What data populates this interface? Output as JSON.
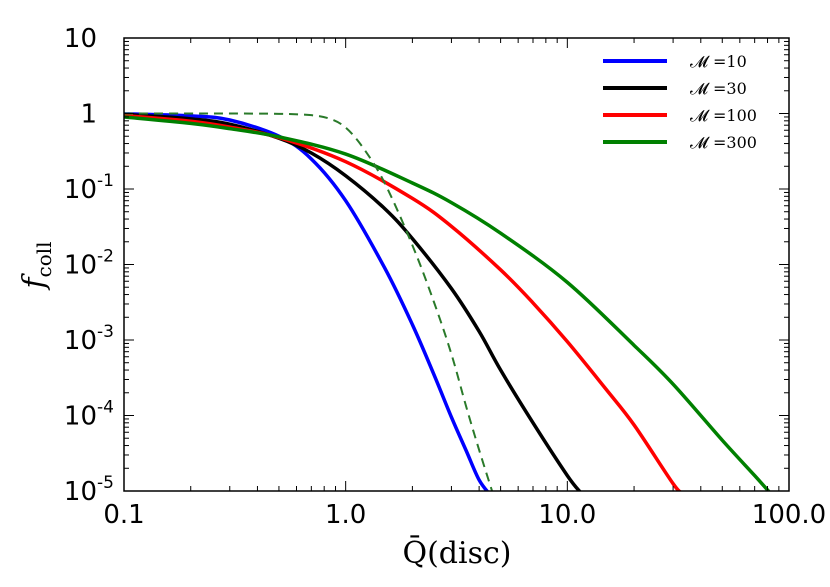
{
  "chart_data": {
    "type": "line",
    "title": "",
    "xlabel": "Q̄(disc)",
    "ylabel": "f_coll",
    "ylabel_main": "f",
    "ylabel_sub": "coll",
    "xscale": "log",
    "yscale": "log",
    "xlim": [
      0.1,
      100
    ],
    "ylim": [
      1e-05,
      10
    ],
    "grid": false,
    "legend_position": "top-right",
    "x_ticks": [
      {
        "value": 0.1,
        "label": "0.1"
      },
      {
        "value": 1,
        "label": "1.0"
      },
      {
        "value": 10,
        "label": "10.0"
      },
      {
        "value": 100,
        "label": "100.0"
      }
    ],
    "y_ticks": [
      {
        "value": 10,
        "base": "10",
        "exp": ""
      },
      {
        "value": 1,
        "base": "1",
        "exp": ""
      },
      {
        "value": 0.1,
        "base": "10",
        "exp": "-1"
      },
      {
        "value": 0.01,
        "base": "10",
        "exp": "-2"
      },
      {
        "value": 0.001,
        "base": "10",
        "exp": "-3"
      },
      {
        "value": 0.0001,
        "base": "10",
        "exp": "-4"
      },
      {
        "value": 1e-05,
        "base": "10",
        "exp": "-5"
      }
    ],
    "series": [
      {
        "name": "𝓜 =10",
        "color": "#0000ff",
        "dash": false,
        "x": [
          0.1,
          0.2,
          0.3,
          0.5,
          0.7,
          1.0,
          1.5,
          2.0,
          2.5,
          3.0,
          3.5,
          4.0,
          4.5
        ],
        "y": [
          0.99,
          0.93,
          0.82,
          0.5,
          0.25,
          0.07,
          0.009,
          0.0016,
          0.00035,
          9.5e-05,
          3.4e-05,
          1.4e-05,
          8.8e-06
        ]
      },
      {
        "name": "𝓜 =30",
        "color": "#000000",
        "dash": false,
        "x": [
          0.1,
          0.2,
          0.3,
          0.5,
          0.7,
          1.0,
          1.5,
          2.0,
          3.0,
          4.0,
          5.0,
          7.0,
          10.0,
          11.5
        ],
        "y": [
          0.97,
          0.85,
          0.72,
          0.47,
          0.3,
          0.15,
          0.055,
          0.022,
          0.0048,
          0.0013,
          0.0004,
          8e-05,
          1.6e-05,
          9.5e-06
        ]
      },
      {
        "name": "𝓜 =100",
        "color": "#ff0000",
        "dash": false,
        "x": [
          0.1,
          0.2,
          0.3,
          0.5,
          1.0,
          2.0,
          3.0,
          5.0,
          7.0,
          10.0,
          15.0,
          20.0,
          30.0,
          33.0
        ],
        "y": [
          0.94,
          0.79,
          0.66,
          0.48,
          0.23,
          0.075,
          0.032,
          0.0085,
          0.0031,
          0.00095,
          0.00022,
          7.5e-05,
          1.25e-05,
          9.5e-06
        ]
      },
      {
        "name": "𝓜 =300",
        "color": "#008000",
        "dash": false,
        "x": [
          0.1,
          0.2,
          0.3,
          0.5,
          1.0,
          2.0,
          3.0,
          5.0,
          10.0,
          20.0,
          30.0,
          50.0,
          70.0,
          82.0
        ],
        "y": [
          0.9,
          0.74,
          0.63,
          0.49,
          0.29,
          0.12,
          0.066,
          0.026,
          0.0058,
          0.00085,
          0.00026,
          4.7e-05,
          1.6e-05,
          9.5e-06
        ]
      },
      {
        "name": "",
        "color": "#2a7a2a",
        "dash": true,
        "x": [
          0.1,
          0.2,
          0.3,
          0.5,
          0.7,
          0.85,
          1.0,
          1.2,
          1.5,
          2.0,
          2.5,
          3.0,
          3.5,
          4.0,
          4.6
        ],
        "y": [
          1.0,
          1.0,
          1.0,
          0.99,
          0.95,
          0.85,
          0.65,
          0.35,
          0.12,
          0.018,
          0.0032,
          0.00065,
          0.00013,
          3.5e-05,
          9.5e-06
        ]
      }
    ]
  }
}
